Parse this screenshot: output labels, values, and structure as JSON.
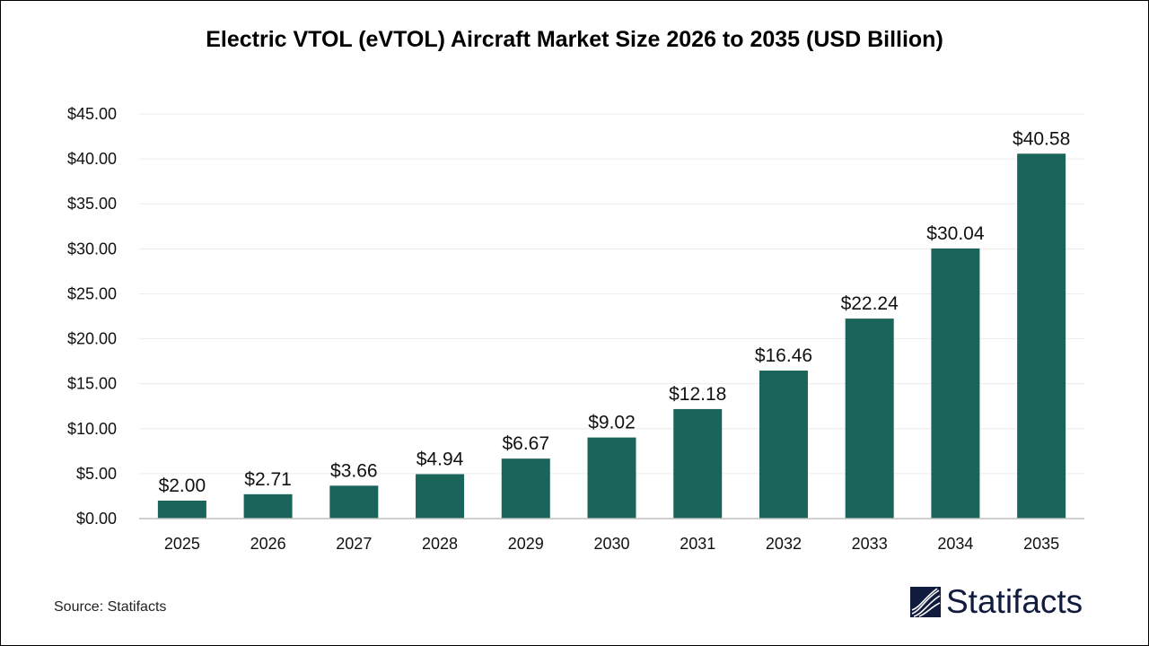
{
  "chart_data": {
    "type": "bar",
    "title": "Electric VTOL (eVTOL) Aircraft Market Size 2026 to 2035 (USD Billion)",
    "categories": [
      "2025",
      "2026",
      "2027",
      "2028",
      "2029",
      "2030",
      "2031",
      "2032",
      "2033",
      "2034",
      "2035"
    ],
    "values": [
      2.0,
      2.71,
      3.66,
      4.94,
      6.67,
      9.02,
      12.18,
      16.46,
      22.24,
      30.04,
      40.58
    ],
    "data_labels": [
      "$2.00",
      "$2.71",
      "$3.66",
      "$4.94",
      "$6.67",
      "$9.02",
      "$12.18",
      "$16.46",
      "$22.24",
      "$30.04",
      "$40.58"
    ],
    "yticks": [
      0,
      5,
      10,
      15,
      20,
      25,
      30,
      35,
      40,
      45
    ],
    "ytick_labels": [
      "$0.00",
      "$5.00",
      "$10.00",
      "$15.00",
      "$20.00",
      "$25.00",
      "$30.00",
      "$35.00",
      "$40.00",
      "$45.00"
    ],
    "ylim": [
      0,
      45
    ],
    "xlabel": "",
    "ylabel": "",
    "grid": true,
    "bar_color": "#1a6459"
  },
  "source": "Source: Statifacts",
  "logo": {
    "text": "Statifacts",
    "color": "#101b3d"
  }
}
